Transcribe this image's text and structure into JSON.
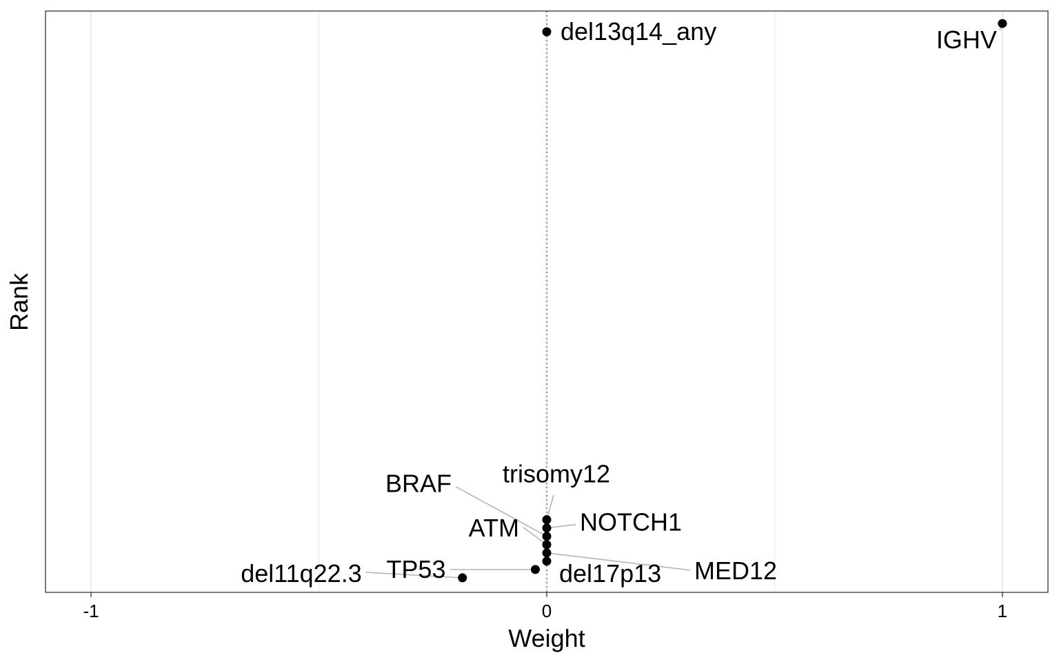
{
  "chart_data": {
    "type": "scatter",
    "xlabel": "Weight",
    "ylabel": "Rank",
    "xlim": [
      -1.1,
      1.1
    ],
    "ylim": [
      0,
      14
    ],
    "x_ticks": [
      -1,
      0,
      1
    ],
    "x_tick_labels": [
      "-1",
      "0",
      "1"
    ],
    "grid": "vertical",
    "reference_line": {
      "x": 0,
      "style": "dotted"
    },
    "colors": {
      "points": "#000000",
      "grid": "#ebebeb",
      "reference": "#a8a8a8",
      "leader": "#b5b5b5",
      "frame": "#333333"
    },
    "points": [
      {
        "label": "IGHV",
        "x": 1.0,
        "rank": 13.7
      },
      {
        "label": "del13q14_any",
        "x": 0.0,
        "rank": 13.5
      },
      {
        "label": "trisomy12",
        "x": 0.0,
        "rank": 1.75
      },
      {
        "label": "NOTCH1",
        "x": 0.0,
        "rank": 1.55
      },
      {
        "label": "BRAF",
        "x": 0.0,
        "rank": 1.35
      },
      {
        "label": "ATM",
        "x": 0.0,
        "rank": 1.15
      },
      {
        "label": "MED12",
        "x": 0.0,
        "rank": 0.95
      },
      {
        "label": "del17p13",
        "x": 0.0,
        "rank": 0.75
      },
      {
        "label": "TP53",
        "x": -0.025,
        "rank": 0.55
      },
      {
        "label": "del11q22.3",
        "x": -0.185,
        "rank": 0.35
      }
    ]
  }
}
